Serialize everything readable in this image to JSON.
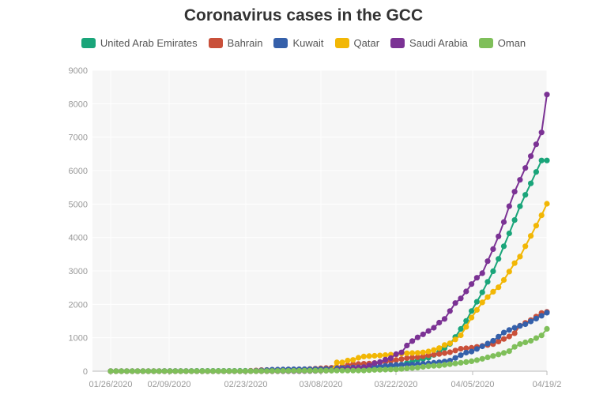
{
  "chart_data": {
    "type": "line",
    "title": "Coronavirus cases in the GCC",
    "x_ticks": [
      "01/26/2020",
      "02/09/2020",
      "02/23/2020",
      "03/08/2020",
      "03/22/2020",
      "04/05/2020",
      "04/19/2"
    ],
    "ylim": [
      0,
      9000
    ],
    "y_ticks": [
      "0",
      "1000",
      "2000",
      "3000",
      "4000",
      "5000",
      "6000",
      "7000",
      "8000",
      "9000"
    ],
    "grid": true,
    "legend": "top",
    "x_start": "2020-01-29",
    "x_end": "2020-04-19",
    "series": [
      {
        "name": "United Arab Emirates",
        "color": "#1aa57a",
        "points": [
          [
            "2020-01-29",
            4
          ],
          [
            "2020-02-05",
            5
          ],
          [
            "2020-02-12",
            8
          ],
          [
            "2020-02-19",
            9
          ],
          [
            "2020-02-26",
            13
          ],
          [
            "2020-03-04",
            27
          ],
          [
            "2020-03-11",
            74
          ],
          [
            "2020-03-18",
            113
          ],
          [
            "2020-03-22",
            153
          ],
          [
            "2020-03-26",
            333
          ],
          [
            "2020-03-28",
            405
          ],
          [
            "2020-03-30",
            570
          ],
          [
            "2020-04-01",
            814
          ],
          [
            "2020-04-02",
            1024
          ],
          [
            "2020-04-03",
            1264
          ],
          [
            "2020-04-04",
            1505
          ],
          [
            "2020-04-05",
            1799
          ],
          [
            "2020-04-06",
            2076
          ],
          [
            "2020-04-07",
            2359
          ],
          [
            "2020-04-09",
            2990
          ],
          [
            "2020-04-10",
            3360
          ],
          [
            "2020-04-11",
            3736
          ],
          [
            "2020-04-12",
            4123
          ],
          [
            "2020-04-13",
            4521
          ],
          [
            "2020-04-14",
            4933
          ],
          [
            "2020-04-18",
            6302
          ],
          [
            "2020-04-19",
            6302
          ]
        ]
      },
      {
        "name": "Bahrain",
        "color": "#c9503a",
        "points": [
          [
            "2020-01-29",
            0
          ],
          [
            "2020-02-23",
            1
          ],
          [
            "2020-02-26",
            33
          ],
          [
            "2020-03-01",
            47
          ],
          [
            "2020-03-05",
            56
          ],
          [
            "2020-03-08",
            85
          ],
          [
            "2020-03-11",
            110
          ],
          [
            "2020-03-14",
            210
          ],
          [
            "2020-03-17",
            228
          ],
          [
            "2020-03-20",
            278
          ],
          [
            "2020-03-22",
            332
          ],
          [
            "2020-03-24",
            392
          ],
          [
            "2020-03-26",
            419
          ],
          [
            "2020-03-28",
            476
          ],
          [
            "2020-03-30",
            515
          ],
          [
            "2020-04-01",
            567
          ],
          [
            "2020-04-03",
            672
          ],
          [
            "2020-04-05",
            700
          ],
          [
            "2020-04-07",
            756
          ],
          [
            "2020-04-09",
            811
          ],
          [
            "2020-04-12",
            1040
          ],
          [
            "2020-04-13",
            1136
          ],
          [
            "2020-04-14",
            1361
          ],
          [
            "2020-04-16",
            1528
          ],
          [
            "2020-04-18",
            1740
          ],
          [
            "2020-04-19",
            1773
          ]
        ]
      },
      {
        "name": "Kuwait",
        "color": "#3560aa",
        "points": [
          [
            "2020-01-29",
            0
          ],
          [
            "2020-02-23",
            0
          ],
          [
            "2020-02-25",
            11
          ],
          [
            "2020-02-28",
            45
          ],
          [
            "2020-03-03",
            56
          ],
          [
            "2020-03-07",
            61
          ],
          [
            "2020-03-10",
            69
          ],
          [
            "2020-03-13",
            100
          ],
          [
            "2020-03-16",
            123
          ],
          [
            "2020-03-19",
            148
          ],
          [
            "2020-03-22",
            188
          ],
          [
            "2020-03-24",
            191
          ],
          [
            "2020-03-26",
            208
          ],
          [
            "2020-03-28",
            235
          ],
          [
            "2020-03-30",
            266
          ],
          [
            "2020-04-01",
            317
          ],
          [
            "2020-04-03",
            479
          ],
          [
            "2020-04-04",
            556
          ],
          [
            "2020-04-05",
            589
          ],
          [
            "2020-04-06",
            665
          ],
          [
            "2020-04-07",
            743
          ],
          [
            "2020-04-09",
            910
          ],
          [
            "2020-04-11",
            1154
          ],
          [
            "2020-04-12",
            1234
          ],
          [
            "2020-04-13",
            1300
          ],
          [
            "2020-04-14",
            1355
          ],
          [
            "2020-04-15",
            1405
          ],
          [
            "2020-04-18",
            1658
          ],
          [
            "2020-04-19",
            1751
          ]
        ]
      },
      {
        "name": "Qatar",
        "color": "#f2b705",
        "points": [
          [
            "2020-01-29",
            0
          ],
          [
            "2020-02-28",
            1
          ],
          [
            "2020-03-04",
            8
          ],
          [
            "2020-03-08",
            15
          ],
          [
            "2020-03-10",
            24
          ],
          [
            "2020-03-11",
            262
          ],
          [
            "2020-03-12",
            262
          ],
          [
            "2020-03-13",
            320
          ],
          [
            "2020-03-14",
            337
          ],
          [
            "2020-03-15",
            401
          ],
          [
            "2020-03-16",
            439
          ],
          [
            "2020-03-17",
            452
          ],
          [
            "2020-03-18",
            460
          ],
          [
            "2020-03-19",
            470
          ],
          [
            "2020-03-20",
            481
          ],
          [
            "2020-03-21",
            494
          ],
          [
            "2020-03-22",
            501
          ],
          [
            "2020-03-23",
            526
          ],
          [
            "2020-03-24",
            537
          ],
          [
            "2020-03-26",
            549
          ],
          [
            "2020-03-27",
            562
          ],
          [
            "2020-03-28",
            590
          ],
          [
            "2020-03-29",
            634
          ],
          [
            "2020-03-30",
            693
          ],
          [
            "2020-03-31",
            781
          ],
          [
            "2020-04-01",
            835
          ],
          [
            "2020-04-02",
            949
          ],
          [
            "2020-04-03",
            1075
          ],
          [
            "2020-04-04",
            1325
          ],
          [
            "2020-04-05",
            1604
          ],
          [
            "2020-04-06",
            1832
          ],
          [
            "2020-04-07",
            2057
          ],
          [
            "2020-04-09",
            2376
          ],
          [
            "2020-04-10",
            2512
          ],
          [
            "2020-04-11",
            2728
          ],
          [
            "2020-04-12",
            2979
          ],
          [
            "2020-04-13",
            3231
          ],
          [
            "2020-04-14",
            3428
          ],
          [
            "2020-04-18",
            4663
          ],
          [
            "2020-04-19",
            5008
          ]
        ]
      },
      {
        "name": "Saudi Arabia",
        "color": "#7b3294",
        "points": [
          [
            "2020-01-29",
            0
          ],
          [
            "2020-03-02",
            1
          ],
          [
            "2020-03-06",
            5
          ],
          [
            "2020-03-08",
            11
          ],
          [
            "2020-03-10",
            20
          ],
          [
            "2020-03-12",
            45
          ],
          [
            "2020-03-14",
            86
          ],
          [
            "2020-03-15",
            103
          ],
          [
            "2020-03-16",
            118
          ],
          [
            "2020-03-17",
            171
          ],
          [
            "2020-03-18",
            238
          ],
          [
            "2020-03-19",
            274
          ],
          [
            "2020-03-20",
            344
          ],
          [
            "2020-03-21",
            392
          ],
          [
            "2020-03-22",
            511
          ],
          [
            "2020-03-23",
            562
          ],
          [
            "2020-03-24",
            767
          ],
          [
            "2020-03-25",
            900
          ],
          [
            "2020-03-26",
            1012
          ],
          [
            "2020-03-27",
            1104
          ],
          [
            "2020-03-28",
            1203
          ],
          [
            "2020-03-29",
            1299
          ],
          [
            "2020-03-30",
            1453
          ],
          [
            "2020-03-31",
            1563
          ],
          [
            "2020-04-02",
            2039
          ],
          [
            "2020-04-03",
            2179
          ],
          [
            "2020-04-04",
            2385
          ],
          [
            "2020-04-05",
            2605
          ],
          [
            "2020-04-06",
            2795
          ],
          [
            "2020-04-07",
            2932
          ],
          [
            "2020-04-09",
            3651
          ],
          [
            "2020-04-10",
            4033
          ],
          [
            "2020-04-11",
            4462
          ],
          [
            "2020-04-12",
            4934
          ],
          [
            "2020-04-13",
            5369
          ],
          [
            "2020-04-18",
            7142
          ],
          [
            "2020-04-19",
            8274
          ]
        ]
      },
      {
        "name": "Oman",
        "color": "#7fbf5a",
        "points": [
          [
            "2020-01-29",
            0
          ],
          [
            "2020-02-24",
            2
          ],
          [
            "2020-02-28",
            6
          ],
          [
            "2020-03-03",
            12
          ],
          [
            "2020-03-08",
            16
          ],
          [
            "2020-03-13",
            19
          ],
          [
            "2020-03-16",
            22
          ],
          [
            "2020-03-18",
            39
          ],
          [
            "2020-03-20",
            48
          ],
          [
            "2020-03-22",
            55
          ],
          [
            "2020-03-24",
            84
          ],
          [
            "2020-03-26",
            109
          ],
          [
            "2020-03-28",
            152
          ],
          [
            "2020-03-30",
            167
          ],
          [
            "2020-04-01",
            210
          ],
          [
            "2020-04-03",
            252
          ],
          [
            "2020-04-05",
            298
          ],
          [
            "2020-04-06",
            331
          ],
          [
            "2020-04-07",
            371
          ],
          [
            "2020-04-09",
            457
          ],
          [
            "2020-04-11",
            546
          ],
          [
            "2020-04-12",
            599
          ],
          [
            "2020-04-13",
            727
          ],
          [
            "2020-04-14",
            813
          ],
          [
            "2020-04-16",
            910
          ],
          [
            "2020-04-18",
            1069
          ],
          [
            "2020-04-19",
            1266
          ]
        ]
      }
    ]
  }
}
